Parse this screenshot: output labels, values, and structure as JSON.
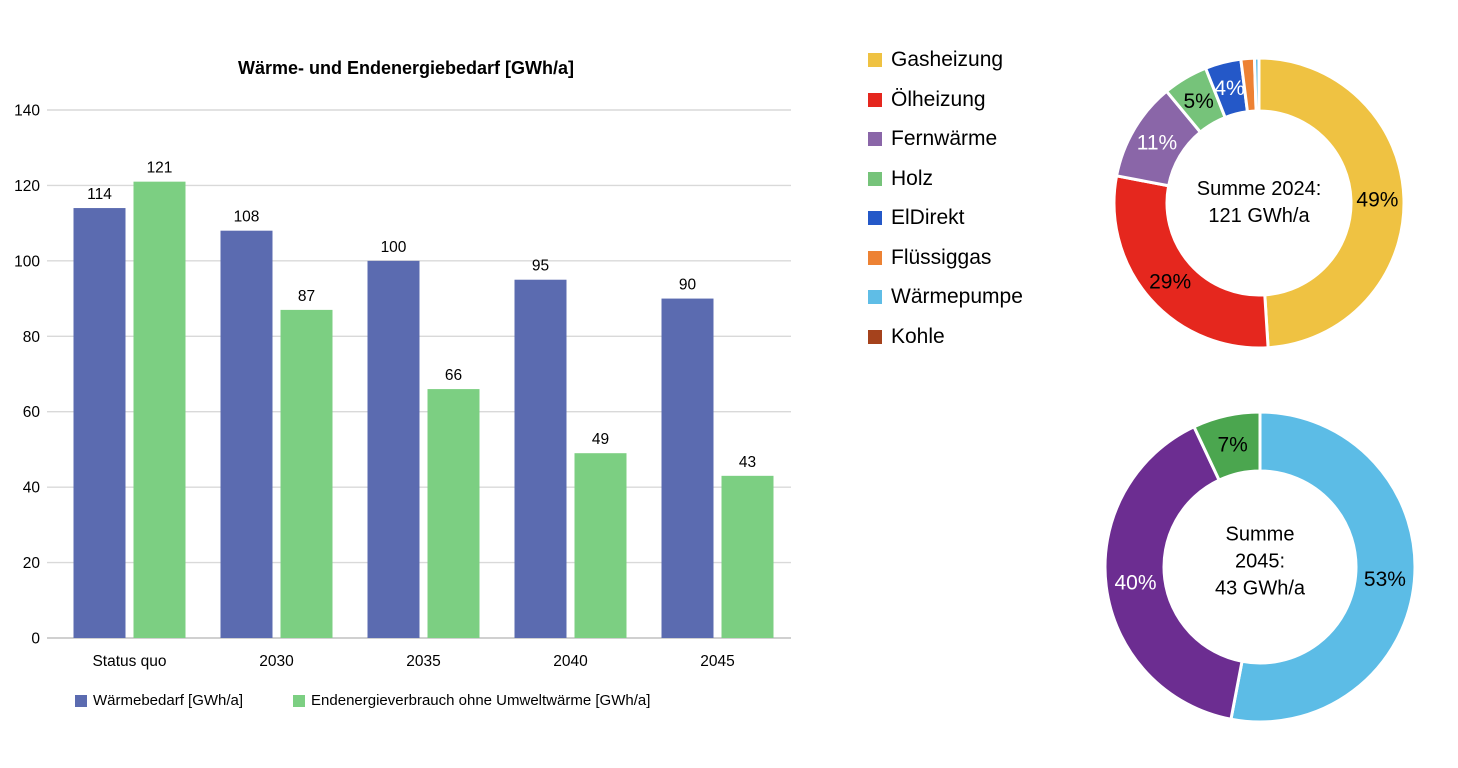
{
  "page": {
    "background": "#FFFFFF"
  },
  "chart_data": [
    {
      "type": "bar",
      "title": "Wärme- und Endenergiebedarf [GWh/a]",
      "categories": [
        "Status quo",
        "2030",
        "2035",
        "2040",
        "2045"
      ],
      "series": [
        {
          "name": "Wärmebedarf [GWh/a]",
          "color": "#5B6BB0",
          "values": [
            114,
            108,
            100,
            95,
            90
          ]
        },
        {
          "name": "Endenergieverbrauch ohne Umweltwärme [GWh/a]",
          "color": "#7CCF82",
          "values": [
            121,
            87,
            66,
            49,
            43
          ]
        }
      ],
      "ylim": [
        0,
        140
      ],
      "ytick_step": 20,
      "yticks": [
        0,
        20,
        40,
        60,
        80,
        100,
        120,
        140
      ],
      "grid": true,
      "gridline_color": "#D9D9D9",
      "axis_color": "#C0C0C0",
      "legend_position": "bottom",
      "value_labels": true
    },
    {
      "type": "pie",
      "donut": true,
      "center_lines": [
        "Summe 2024:",
        "121 GWh/a"
      ],
      "total_label": "Summe 2024: 121 GWh/a",
      "start_angle_deg": 0,
      "slices": [
        {
          "name": "Gasheizung",
          "pct": 49,
          "label": "49%",
          "color": "#EFC242",
          "label_color": "#000000"
        },
        {
          "name": "Ölheizung",
          "pct": 29,
          "label": "29%",
          "color": "#E5271E",
          "label_color": "#000000"
        },
        {
          "name": "Fernwärme",
          "pct": 11,
          "label": "11%",
          "color": "#8A66A8",
          "label_color": "#FFFFFF"
        },
        {
          "name": "Holz",
          "pct": 5,
          "label": "5%",
          "color": "#76C37A",
          "label_color": "#000000"
        },
        {
          "name": "ElDirekt",
          "pct": 4,
          "label": "4%",
          "color": "#2458C8",
          "label_color": "#FFFFFF"
        },
        {
          "name": "Flüssiggas",
          "pct": 1.5,
          "label": "",
          "color": "#ED8234",
          "label_color": "#000000"
        },
        {
          "name": "Wärmepumpe",
          "pct": 0.5,
          "label": "",
          "color": "#5FBDE6",
          "label_color": "#000000"
        }
      ]
    },
    {
      "type": "pie",
      "donut": true,
      "center_lines": [
        "Summe",
        "2045:",
        "43 GWh/a"
      ],
      "total_label": "Summe 2045: 43 GWh/a",
      "start_angle_deg": 0,
      "slices": [
        {
          "name": "Wärmepumpe",
          "pct": 53,
          "label": "53%",
          "color": "#5CBCE6",
          "label_color": "#000000"
        },
        {
          "name": "Fernwärme",
          "pct": 40,
          "label": "40%",
          "color": "#6C2D91",
          "label_color": "#FFFFFF"
        },
        {
          "name": "Holz",
          "pct": 7,
          "label": "7%",
          "color": "#4BA64F",
          "label_color": "#000000"
        }
      ]
    }
  ],
  "type_legend": {
    "items": [
      {
        "label": "Gasheizung",
        "color": "#EFC242"
      },
      {
        "label": "Ölheizung",
        "color": "#E5271E"
      },
      {
        "label": "Fernwärme",
        "color": "#8A66A8"
      },
      {
        "label": "Holz",
        "color": "#76C37A"
      },
      {
        "label": "ElDirekt",
        "color": "#2458C8"
      },
      {
        "label": "Flüssiggas",
        "color": "#ED8234"
      },
      {
        "label": "Wärmepumpe",
        "color": "#5FBDE6"
      },
      {
        "label": "Kohle",
        "color": "#A5421C"
      }
    ]
  }
}
